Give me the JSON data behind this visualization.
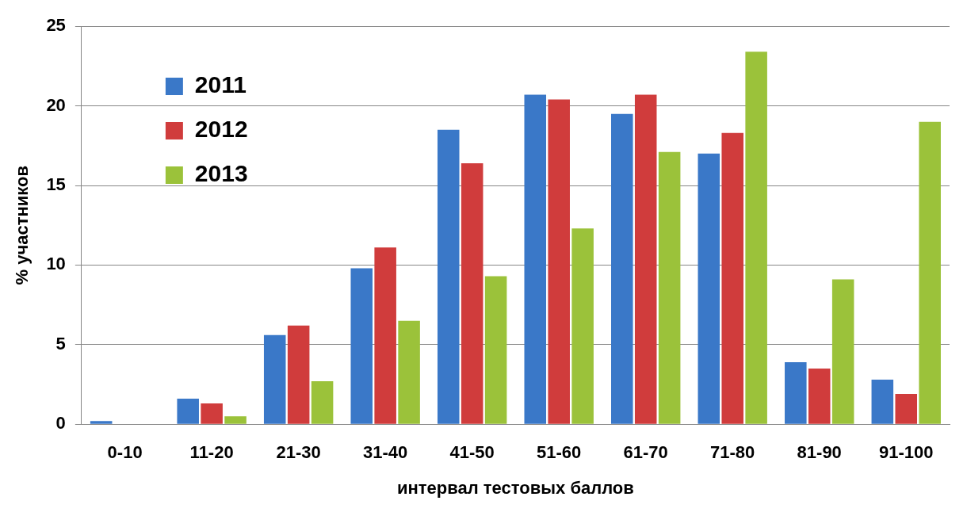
{
  "chart_data": {
    "type": "bar",
    "xlabel": "интервал тестовых баллов",
    "ylabel": "% участников",
    "categories": [
      "0-10",
      "11-20",
      "21-30",
      "31-40",
      "41-50",
      "51-60",
      "61-70",
      "71-80",
      "81-90",
      "91-100"
    ],
    "series": [
      {
        "name": "2011",
        "color": "#3a78c8",
        "values": [
          0.2,
          1.6,
          5.6,
          9.8,
          18.5,
          20.7,
          19.5,
          17.0,
          3.9,
          2.8
        ]
      },
      {
        "name": "2012",
        "color": "#d03c3c",
        "values": [
          0,
          1.3,
          6.2,
          11.1,
          16.4,
          20.4,
          20.7,
          18.3,
          3.5,
          1.9
        ]
      },
      {
        "name": "2013",
        "color": "#9bc23a",
        "values": [
          0,
          0.5,
          2.7,
          6.5,
          9.3,
          12.3,
          17.1,
          23.4,
          9.1,
          19.0
        ]
      }
    ],
    "ylim": [
      0,
      25
    ],
    "yticks": [
      0,
      5,
      10,
      15,
      20,
      25
    ],
    "grid": "y",
    "legend": "top left"
  }
}
